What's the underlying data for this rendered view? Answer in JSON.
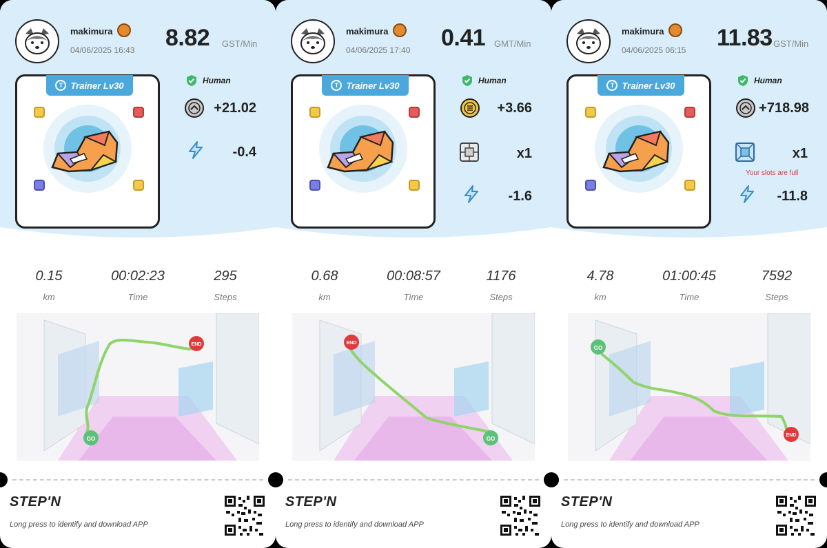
{
  "app": "STEPN",
  "cards": [
    {
      "username": "makimura",
      "timestamp": "04/06/2025 16:43",
      "rate": "8.82",
      "rate_unit": "GST/Min",
      "trainer_label": "Trainer Lv30",
      "verification": "Human",
      "rewards": [
        {
          "icon": "gst-token-icon",
          "value": "+21.02"
        },
        {
          "icon": "energy-bolt-icon",
          "value": "-0.4"
        }
      ],
      "slots_note": "",
      "stats": {
        "distance": "0.15",
        "distance_label": "km",
        "time": "00:02:23",
        "time_label": "Time",
        "steps": "295",
        "steps_label": "Steps"
      },
      "map": {
        "start_label": "GO",
        "end_label": "END",
        "route_color": "#8fd46a"
      },
      "logo": "STEP'N",
      "download_text": "Long press to identify and download APP"
    },
    {
      "username": "makimura",
      "timestamp": "04/06/2025 17:40",
      "rate": "0.41",
      "rate_unit": "GMT/Min",
      "trainer_label": "Trainer Lv30",
      "verification": "Human",
      "rewards": [
        {
          "icon": "gmt-token-icon",
          "value": "+3.66"
        },
        {
          "icon": "mystery-box-icon",
          "value": "x1"
        },
        {
          "icon": "energy-bolt-icon",
          "value": "-1.6"
        }
      ],
      "slots_note": "",
      "stats": {
        "distance": "0.68",
        "distance_label": "km",
        "time": "00:08:57",
        "time_label": "Time",
        "steps": "1176",
        "steps_label": "Steps"
      },
      "map": {
        "start_label": "GO",
        "end_label": "END",
        "route_color": "#8fd46a"
      },
      "logo": "STEP'N",
      "download_text": "Long press to identify and download APP"
    },
    {
      "username": "makimura",
      "timestamp": "04/06/2025 06:15",
      "rate": "11.83",
      "rate_unit": "GST/Min",
      "trainer_label": "Trainer Lv30",
      "verification": "Human",
      "rewards": [
        {
          "icon": "gst-token-icon",
          "value": "+718.98"
        },
        {
          "icon": "mystery-box-icon",
          "value": "x1"
        },
        {
          "icon": "energy-bolt-icon",
          "value": "-11.8"
        }
      ],
      "slots_note": "Your slots are full",
      "stats": {
        "distance": "4.78",
        "distance_label": "km",
        "time": "01:00:45",
        "time_label": "Time",
        "steps": "7592",
        "steps_label": "Steps"
      },
      "map": {
        "start_label": "GO",
        "end_label": "END",
        "route_color": "#8fd46a"
      },
      "logo": "STEP'N",
      "download_text": "Long press to identify and download APP"
    }
  ],
  "colors": {
    "accent_blue": "#4aa8dc",
    "top_bg": "#d9eefa",
    "end_red": "#e0393e",
    "go_green": "#5cc27a"
  }
}
